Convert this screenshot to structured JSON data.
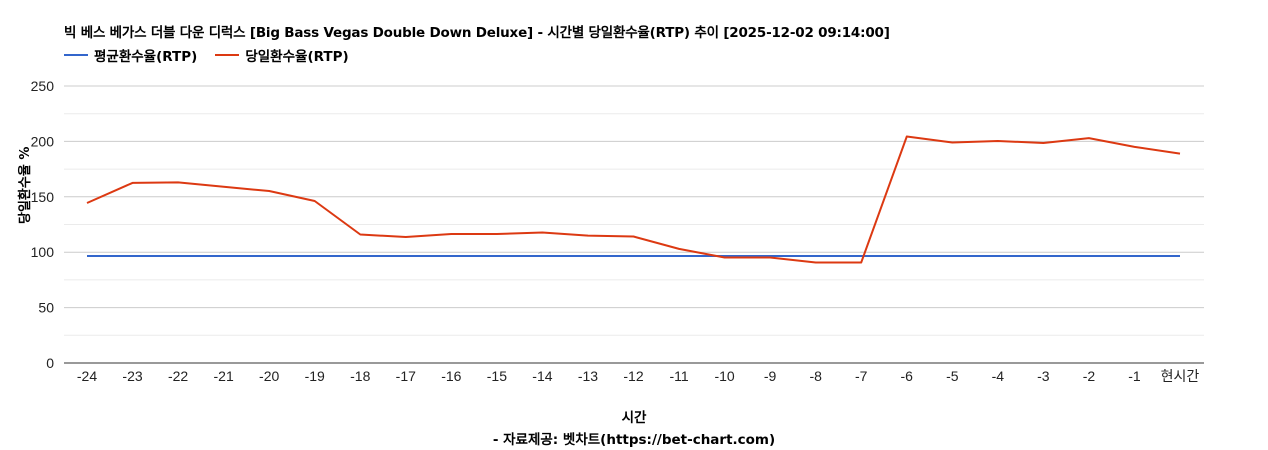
{
  "chart": {
    "title": "빅 베스 베가스 더블 다운 디럭스 [Big Bass Vegas Double Down Deluxe] - 시간별 당일환수율(RTP) 추이 [2025-12-02 09:14:00]",
    "legend": [
      {
        "label": "평균환수율(RTP)",
        "color": "#3366cc"
      },
      {
        "label": "당일환수율(RTP)",
        "color": "#dc3912"
      }
    ],
    "xlabel": "시간",
    "ylabel": "당일환수율 %",
    "footer": "- 자료제공: 벳차트(https://bet-chart.com)"
  },
  "chart_data": {
    "type": "line",
    "title": "빅 베스 베가스 더블 다운 디럭스 [Big Bass Vegas Double Down Deluxe] - 시간별 당일환수율(RTP) 추이 [2025-12-02 09:14:00]",
    "xlabel": "시간",
    "ylabel": "당일환수율 %",
    "ylim": [
      0,
      250
    ],
    "yticks": [
      0,
      50,
      100,
      150,
      200,
      250
    ],
    "grid": true,
    "legend_position": "top",
    "categories": [
      "-24",
      "-23",
      "-22",
      "-21",
      "-20",
      "-19",
      "-18",
      "-17",
      "-16",
      "-15",
      "-14",
      "-13",
      "-12",
      "-11",
      "-10",
      "-9",
      "-8",
      "-7",
      "-6",
      "-5",
      "-4",
      "-3",
      "-2",
      "-1",
      "현시간"
    ],
    "series": [
      {
        "name": "평균환수율(RTP)",
        "color": "#3366cc",
        "values": [
          96.6,
          96.6,
          96.6,
          96.6,
          96.6,
          96.6,
          96.6,
          96.6,
          96.6,
          96.6,
          96.6,
          96.6,
          96.6,
          96.6,
          96.6,
          96.6,
          96.6,
          96.6,
          96.6,
          96.6,
          96.6,
          96.6,
          96.6,
          96.6,
          96.6
        ]
      },
      {
        "name": "당일환수율(RTP)",
        "color": "#dc3912",
        "values": [
          144.4,
          162.5,
          163.0,
          159.0,
          155.2,
          146.2,
          116.0,
          113.7,
          116.4,
          116.4,
          117.8,
          115.0,
          114.2,
          103.0,
          95.2,
          95.2,
          90.7,
          90.7,
          204.4,
          199.0,
          200.4,
          198.6,
          203.0,
          195.0,
          189.0
        ]
      }
    ]
  }
}
